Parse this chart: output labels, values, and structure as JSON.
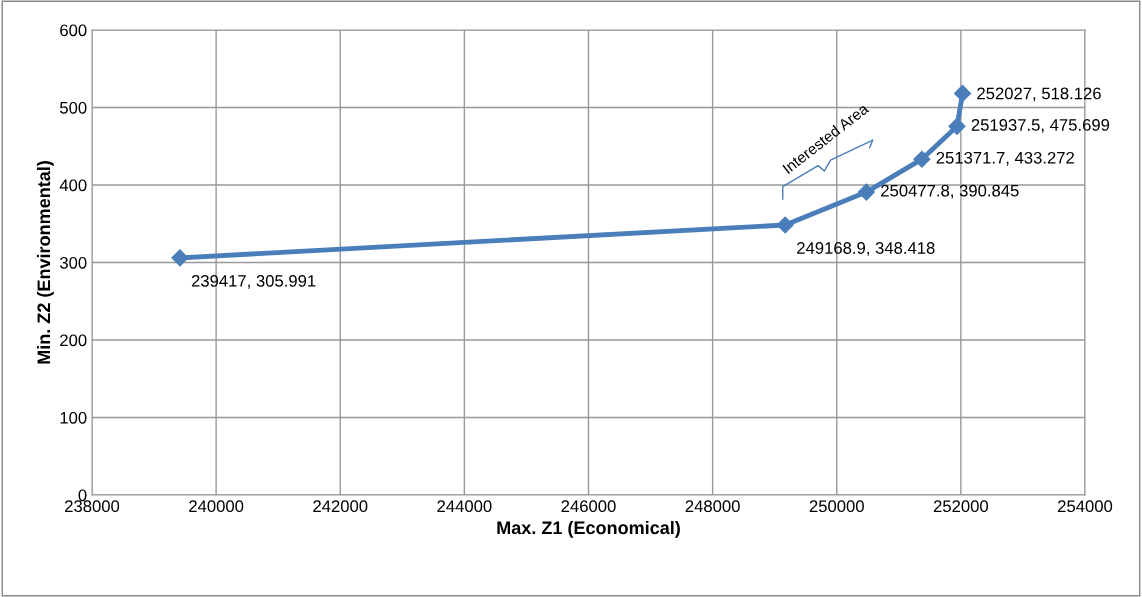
{
  "chart_data": {
    "type": "line",
    "xlabel": "Max. Z1 (Economical)",
    "ylabel": "Min. Z2 (Environmental)",
    "x": [
      239417,
      249168.9,
      250477.8,
      251371.7,
      251937.5,
      252027
    ],
    "series": [
      {
        "color": "#4a7ebb",
        "values": [
          305.991,
          348.418,
          390.845,
          433.272,
          475.699,
          518.126
        ],
        "value_labels": [
          "239417, 305.991",
          "249168.9, 348.418",
          "250477.8, 390.845",
          "251371.7, 433.272",
          "251937.5, 475.699",
          "252027, 518.126"
        ]
      }
    ],
    "xlim": [
      238000,
      254000
    ],
    "xticks": [
      238000,
      240000,
      242000,
      244000,
      246000,
      248000,
      250000,
      252000,
      254000
    ],
    "ylim": [
      0,
      600
    ],
    "yticks": [
      0,
      100,
      200,
      300,
      400,
      500,
      600
    ],
    "grid": true,
    "marker": "diamond",
    "line_style": "solid",
    "annotations": [
      "Interested Area"
    ]
  }
}
